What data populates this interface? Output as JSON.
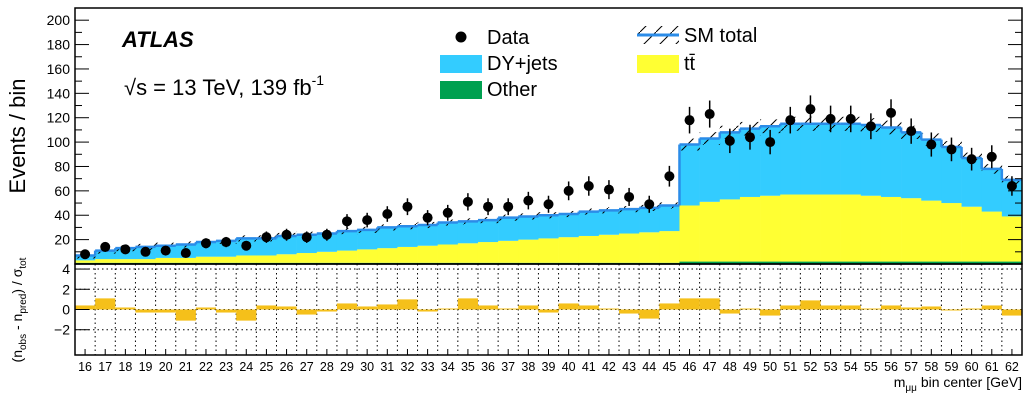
{
  "chart_data": {
    "type": "bar",
    "experiment": "ATLAS",
    "energy_label": "√s = 13 TeV, 139 fb",
    "lumi_exponent": "-1",
    "ylabel": "Events / bin",
    "xlabel": "m",
    "xlabel_sub": "μμ",
    "xlabel_rest": " bin center [GeV]",
    "ratio_ylabel": "(n",
    "ratio_ylabel_parts": [
      "obs",
      " - n",
      "pred",
      ") / σ",
      "tot"
    ],
    "ylim": [
      0,
      210
    ],
    "ratio_ylim": [
      -4.5,
      4.5
    ],
    "yticks": [
      20,
      40,
      60,
      80,
      100,
      120,
      140,
      160,
      180,
      200
    ],
    "yticks_labels": [
      "20",
      "40",
      "60",
      "80",
      "100",
      "120",
      "140",
      "160",
      "180",
      "200"
    ],
    "ratio_yticks": [
      -2,
      0,
      2,
      4
    ],
    "ratio_yticks_labels": [
      "−2",
      "0",
      "2",
      "4"
    ],
    "categories": [
      "16",
      "17",
      "18",
      "19",
      "20",
      "21",
      "22",
      "23",
      "24",
      "25",
      "26",
      "27",
      "28",
      "29",
      "30",
      "31",
      "32",
      "33",
      "34",
      "35",
      "36",
      "37",
      "38",
      "39",
      "40",
      "41",
      "42",
      "43",
      "44",
      "45",
      "46",
      "47",
      "48",
      "49",
      "50",
      "51",
      "52",
      "53",
      "54",
      "55",
      "56",
      "57",
      "58",
      "59",
      "60",
      "61",
      "62"
    ],
    "legend": {
      "data": "Data",
      "sm_total": "SM total",
      "dy": "DY+jets",
      "ttbar": "tt̄",
      "other": "Other"
    },
    "colors": {
      "dy": "#33ccff",
      "ttbar": "#ffff33",
      "other": "#00a050",
      "sm_line": "#2b8ce8",
      "ratio": "#f5c01a",
      "data": "#000000"
    },
    "series": [
      {
        "name": "Other",
        "values": [
          1,
          1,
          1,
          1,
          1,
          1,
          1,
          1,
          1,
          1,
          1,
          1,
          1,
          1,
          1,
          1,
          1,
          1,
          1,
          1,
          1,
          1,
          1,
          1,
          1,
          1,
          1,
          1,
          1,
          1,
          2,
          2,
          2,
          2,
          2,
          2,
          2,
          2,
          2,
          2,
          2,
          2,
          2,
          2,
          2,
          2,
          2
        ]
      },
      {
        "name": "tt̄",
        "values": [
          2,
          3,
          3,
          3,
          4,
          4,
          5,
          5,
          6,
          6,
          7,
          8,
          9,
          10,
          11,
          12,
          13,
          14,
          15,
          16,
          17,
          18,
          19,
          20,
          21,
          22,
          23,
          24,
          25,
          26,
          46,
          49,
          51,
          53,
          54,
          55,
          55,
          55,
          55,
          54,
          53,
          52,
          50,
          48,
          45,
          41,
          37
        ]
      },
      {
        "name": "DY+jets",
        "values": [
          4,
          7,
          9,
          10,
          10,
          11,
          12,
          13,
          14,
          14,
          15,
          15,
          15,
          16,
          16,
          17,
          17,
          17,
          18,
          18,
          18,
          19,
          19,
          19,
          19,
          20,
          20,
          20,
          20,
          21,
          50,
          52,
          55,
          56,
          57,
          58,
          58,
          58,
          58,
          58,
          57,
          54,
          50,
          46,
          40,
          35,
          30
        ]
      },
      {
        "name": "Data",
        "values": [
          8,
          14,
          12,
          10,
          11,
          9,
          17,
          18,
          15,
          22,
          24,
          22,
          24,
          35,
          36,
          41,
          47,
          38,
          42,
          51,
          47,
          47,
          52,
          49,
          60,
          64,
          61,
          55,
          49,
          72,
          118,
          123,
          101,
          104,
          100,
          118,
          127,
          119,
          119,
          113,
          124,
          109,
          98,
          94,
          86,
          88,
          64
        ]
      },
      {
        "name": "Data error",
        "values": [
          3,
          4,
          3.5,
          3.2,
          3.3,
          3,
          4.1,
          4.2,
          3.9,
          4.7,
          4.9,
          4.7,
          4.9,
          5.9,
          6,
          6.4,
          6.9,
          6.2,
          6.5,
          7.1,
          6.9,
          6.9,
          7.2,
          7,
          7.7,
          8,
          7.8,
          7.4,
          7,
          8.5,
          10.9,
          11.1,
          10,
          10.2,
          10,
          10.9,
          11.3,
          10.9,
          10.9,
          10.6,
          11.1,
          10.4,
          9.9,
          9.7,
          9.3,
          9.4,
          8
        ]
      },
      {
        "name": "Significance",
        "values": [
          0.4,
          1.1,
          0.2,
          -0.3,
          -0.3,
          -1.1,
          0.2,
          -0.3,
          -1.1,
          0.4,
          0.3,
          -0.5,
          -0.2,
          0.6,
          0.3,
          0.5,
          1.0,
          -0.2,
          0.1,
          1.1,
          0.4,
          0.1,
          0.4,
          -0.3,
          0.6,
          0.4,
          0.1,
          -0.4,
          -0.9,
          0.6,
          1.1,
          1.1,
          -0.4,
          0.1,
          -0.6,
          0.4,
          0.9,
          0.4,
          0.4,
          0.1,
          0.4,
          0.2,
          0.3,
          -0.1,
          0.1,
          0.4,
          -0.6
        ]
      }
    ]
  }
}
